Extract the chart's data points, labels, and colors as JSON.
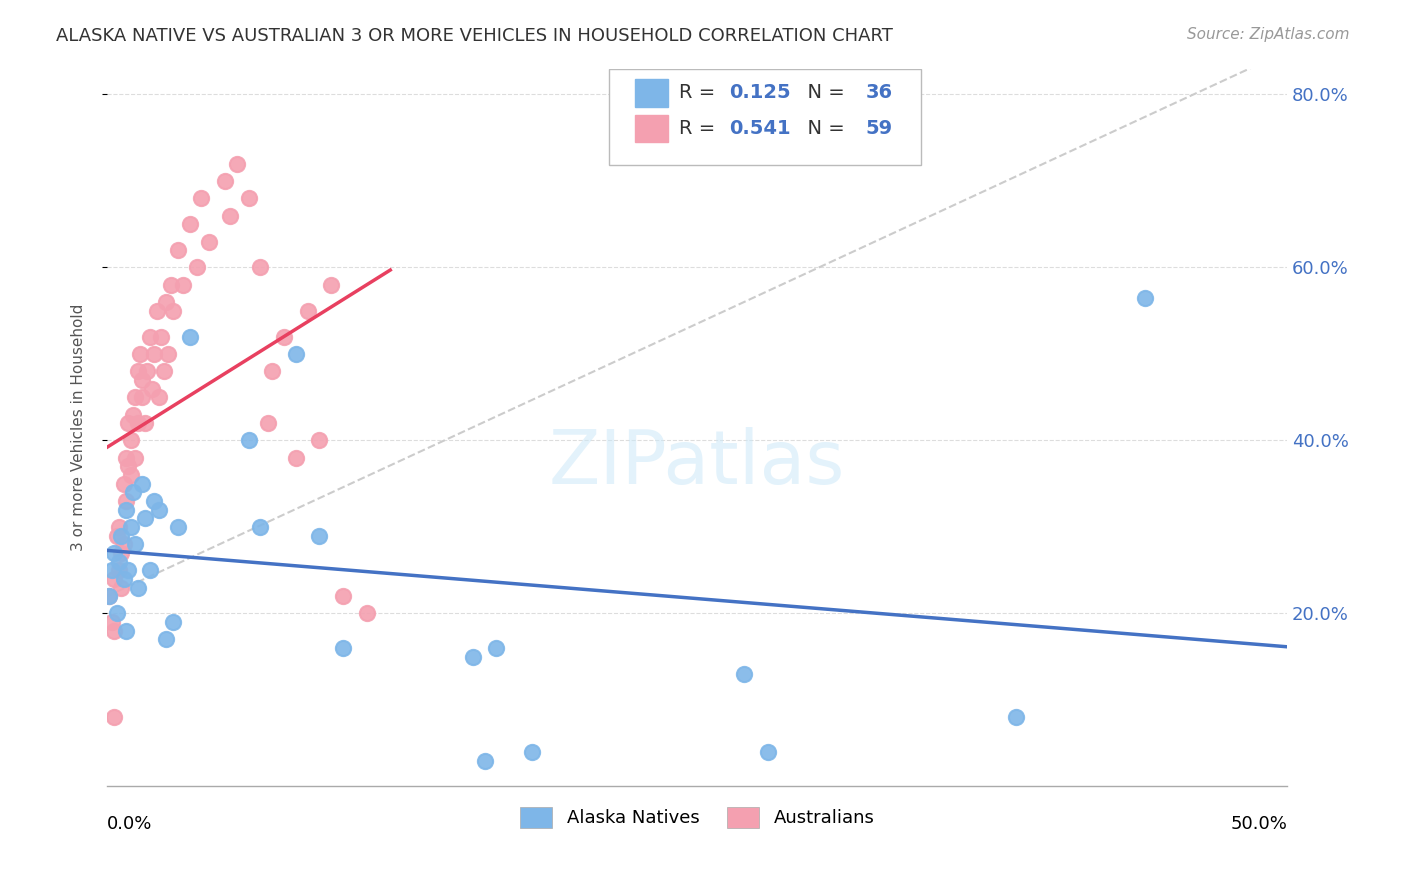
{
  "title": "ALASKA NATIVE VS AUSTRALIAN 3 OR MORE VEHICLES IN HOUSEHOLD CORRELATION CHART",
  "source": "Source: ZipAtlas.com",
  "ylabel": "3 or more Vehicles in Household",
  "xlim": [
    0.0,
    0.5
  ],
  "ylim": [
    0.0,
    0.83
  ],
  "yticks": [
    0.2,
    0.4,
    0.6,
    0.8
  ],
  "ytick_labels": [
    "20.0%",
    "40.0%",
    "60.0%",
    "80.0%"
  ],
  "alaska_R": 0.125,
  "alaska_N": 36,
  "australian_R": 0.541,
  "australian_N": 59,
  "alaska_color": "#7EB6E8",
  "australian_color": "#F4A0B0",
  "alaska_line_color": "#4472C4",
  "australian_line_color": "#E84060",
  "alaska_x": [
    0.001,
    0.002,
    0.003,
    0.004,
    0.005,
    0.006,
    0.007,
    0.008,
    0.008,
    0.009,
    0.01,
    0.011,
    0.012,
    0.013,
    0.015,
    0.016,
    0.018,
    0.02,
    0.022,
    0.025,
    0.028,
    0.03,
    0.035,
    0.06,
    0.065,
    0.08,
    0.09,
    0.1,
    0.155,
    0.16,
    0.165,
    0.18,
    0.27,
    0.28,
    0.385,
    0.44
  ],
  "alaska_y": [
    0.22,
    0.25,
    0.27,
    0.2,
    0.26,
    0.29,
    0.24,
    0.18,
    0.32,
    0.25,
    0.3,
    0.34,
    0.28,
    0.23,
    0.35,
    0.31,
    0.25,
    0.33,
    0.32,
    0.17,
    0.19,
    0.3,
    0.52,
    0.4,
    0.3,
    0.5,
    0.29,
    0.16,
    0.15,
    0.03,
    0.16,
    0.04,
    0.13,
    0.04,
    0.08,
    0.565
  ],
  "australian_x": [
    0.001,
    0.002,
    0.003,
    0.003,
    0.004,
    0.005,
    0.005,
    0.006,
    0.006,
    0.007,
    0.007,
    0.008,
    0.008,
    0.009,
    0.009,
    0.01,
    0.01,
    0.011,
    0.012,
    0.012,
    0.013,
    0.013,
    0.014,
    0.015,
    0.015,
    0.016,
    0.017,
    0.018,
    0.019,
    0.02,
    0.021,
    0.022,
    0.023,
    0.024,
    0.025,
    0.026,
    0.027,
    0.028,
    0.03,
    0.032,
    0.035,
    0.038,
    0.04,
    0.043,
    0.05,
    0.052,
    0.055,
    0.06,
    0.065,
    0.068,
    0.07,
    0.075,
    0.08,
    0.085,
    0.09,
    0.095,
    0.1,
    0.003,
    0.11
  ],
  "australian_y": [
    0.22,
    0.19,
    0.24,
    0.18,
    0.29,
    0.25,
    0.3,
    0.23,
    0.27,
    0.35,
    0.28,
    0.33,
    0.38,
    0.37,
    0.42,
    0.36,
    0.4,
    0.43,
    0.38,
    0.45,
    0.42,
    0.48,
    0.5,
    0.45,
    0.47,
    0.42,
    0.48,
    0.52,
    0.46,
    0.5,
    0.55,
    0.45,
    0.52,
    0.48,
    0.56,
    0.5,
    0.58,
    0.55,
    0.62,
    0.58,
    0.65,
    0.6,
    0.68,
    0.63,
    0.7,
    0.66,
    0.72,
    0.68,
    0.6,
    0.42,
    0.48,
    0.52,
    0.38,
    0.55,
    0.4,
    0.58,
    0.22,
    0.08,
    0.2
  ]
}
